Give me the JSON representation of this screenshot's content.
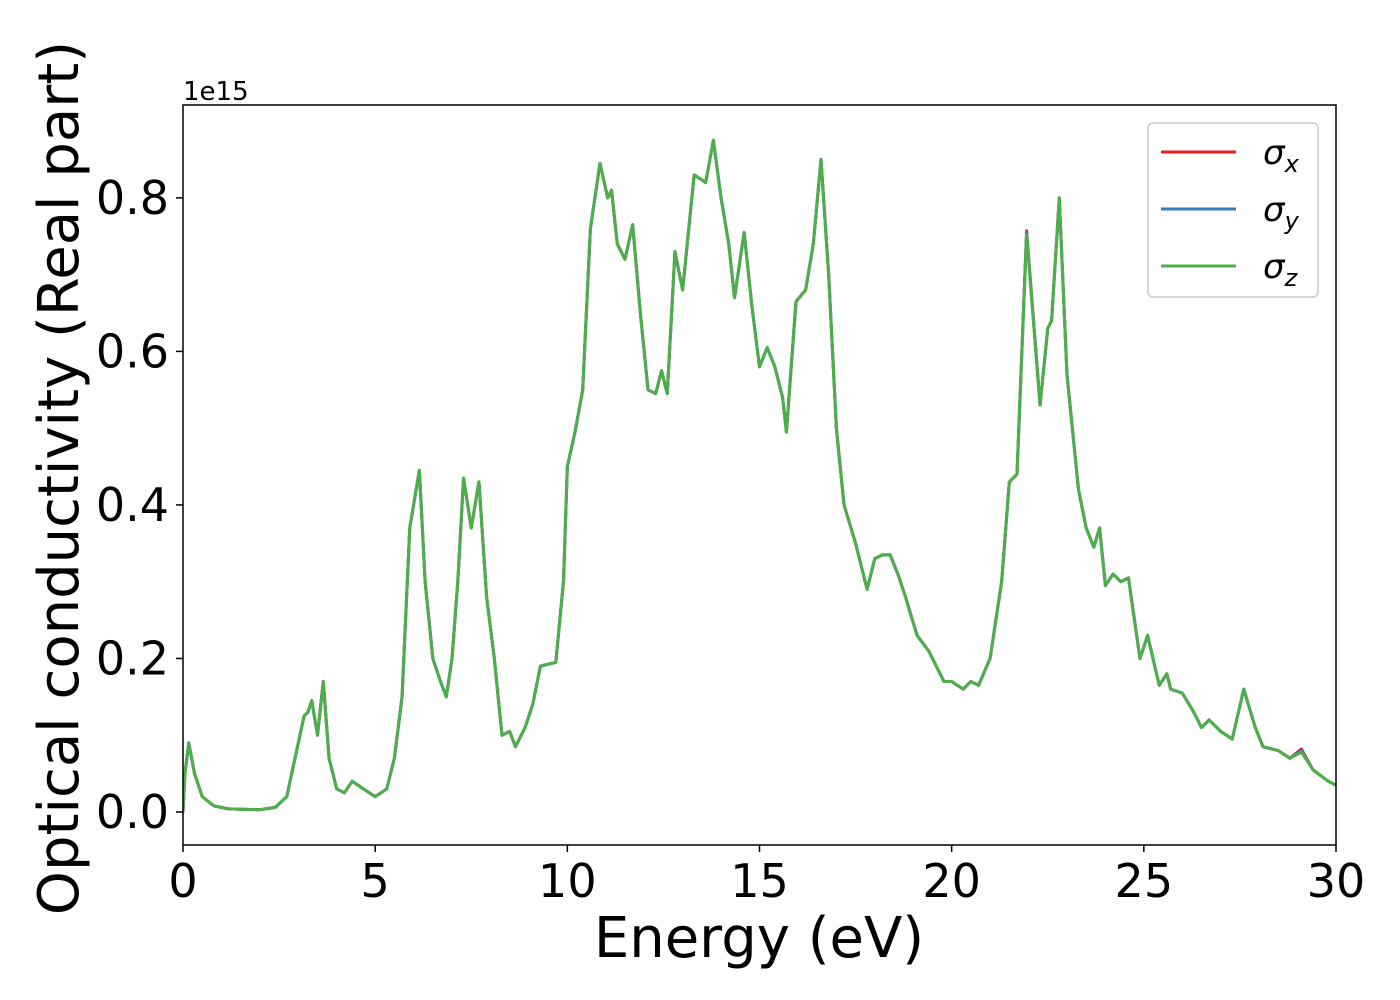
{
  "chart_data": {
    "type": "line",
    "xlabel": "Energy (eV)",
    "ylabel": "Optical conductivity (Real part)",
    "offset_text": "1e15",
    "x": [
      0,
      0.05,
      0.15,
      0.3,
      0.5,
      0.8,
      1.2,
      2.0,
      2.4,
      2.7,
      3.0,
      3.15,
      3.25,
      3.35,
      3.5,
      3.65,
      3.8,
      4.0,
      4.2,
      4.4,
      4.7,
      5.0,
      5.3,
      5.5,
      5.7,
      5.9,
      6.0,
      6.15,
      6.3,
      6.5,
      6.7,
      6.85,
      7.0,
      7.15,
      7.3,
      7.5,
      7.7,
      7.9,
      8.1,
      8.3,
      8.5,
      8.65,
      8.9,
      9.1,
      9.3,
      9.7,
      9.9,
      10.0,
      10.2,
      10.4,
      10.6,
      10.85,
      11.05,
      11.15,
      11.3,
      11.5,
      11.7,
      11.9,
      12.1,
      12.3,
      12.45,
      12.6,
      12.8,
      13.0,
      13.3,
      13.6,
      13.8,
      14.0,
      14.2,
      14.35,
      14.6,
      14.8,
      15.0,
      15.2,
      15.4,
      15.6,
      15.7,
      15.95,
      16.2,
      16.4,
      16.6,
      16.8,
      17.0,
      17.2,
      17.5,
      17.8,
      18.0,
      18.2,
      18.4,
      18.6,
      18.8,
      19.1,
      19.4,
      19.8,
      20.0,
      20.3,
      20.5,
      20.7,
      21.0,
      21.3,
      21.5,
      21.7,
      21.95,
      22.3,
      22.5,
      22.6,
      22.8,
      23.0,
      23.3,
      23.5,
      23.7,
      23.85,
      24.0,
      24.2,
      24.4,
      24.6,
      24.9,
      25.1,
      25.4,
      25.6,
      25.7,
      26.0,
      26.3,
      26.5,
      26.7,
      27.0,
      27.3,
      27.6,
      27.9,
      28.1,
      28.5,
      28.8,
      29.1,
      29.4,
      29.8,
      30.0
    ],
    "series": [
      {
        "name": "σx",
        "color": "#e41a1c",
        "values": [
          0,
          0.05,
          0.09,
          0.05,
          0.02,
          0.008,
          0.004,
          0.003,
          0.006,
          0.02,
          0.09,
          0.125,
          0.13,
          0.145,
          0.1,
          0.17,
          0.07,
          0.03,
          0.025,
          0.04,
          0.03,
          0.02,
          0.03,
          0.07,
          0.15,
          0.37,
          0.4,
          0.445,
          0.3,
          0.2,
          0.17,
          0.15,
          0.2,
          0.3,
          0.435,
          0.37,
          0.43,
          0.28,
          0.2,
          0.1,
          0.105,
          0.085,
          0.11,
          0.14,
          0.19,
          0.195,
          0.3,
          0.45,
          0.495,
          0.55,
          0.76,
          0.845,
          0.8,
          0.81,
          0.74,
          0.72,
          0.765,
          0.65,
          0.55,
          0.545,
          0.575,
          0.545,
          0.73,
          0.68,
          0.83,
          0.82,
          0.875,
          0.8,
          0.74,
          0.67,
          0.755,
          0.66,
          0.58,
          0.605,
          0.58,
          0.54,
          0.495,
          0.665,
          0.68,
          0.74,
          0.85,
          0.7,
          0.5,
          0.4,
          0.35,
          0.29,
          0.33,
          0.335,
          0.335,
          0.31,
          0.28,
          0.23,
          0.21,
          0.17,
          0.17,
          0.16,
          0.17,
          0.165,
          0.2,
          0.3,
          0.43,
          0.44,
          0.757,
          0.53,
          0.63,
          0.64,
          0.8,
          0.57,
          0.42,
          0.37,
          0.345,
          0.37,
          0.295,
          0.31,
          0.3,
          0.305,
          0.2,
          0.23,
          0.165,
          0.18,
          0.16,
          0.155,
          0.13,
          0.11,
          0.12,
          0.105,
          0.095,
          0.16,
          0.11,
          0.085,
          0.08,
          0.07,
          0.082,
          0.055,
          0.04,
          0.035
        ]
      },
      {
        "name": "σy",
        "color": "#377eb8",
        "values": [
          0,
          0.05,
          0.09,
          0.05,
          0.02,
          0.008,
          0.004,
          0.003,
          0.006,
          0.02,
          0.09,
          0.125,
          0.13,
          0.145,
          0.1,
          0.17,
          0.07,
          0.03,
          0.025,
          0.04,
          0.03,
          0.02,
          0.03,
          0.07,
          0.15,
          0.37,
          0.4,
          0.445,
          0.3,
          0.2,
          0.17,
          0.15,
          0.2,
          0.3,
          0.435,
          0.37,
          0.43,
          0.28,
          0.2,
          0.1,
          0.105,
          0.085,
          0.11,
          0.14,
          0.19,
          0.195,
          0.3,
          0.45,
          0.495,
          0.55,
          0.76,
          0.845,
          0.8,
          0.81,
          0.74,
          0.72,
          0.765,
          0.65,
          0.55,
          0.545,
          0.575,
          0.545,
          0.73,
          0.68,
          0.83,
          0.82,
          0.875,
          0.8,
          0.74,
          0.67,
          0.755,
          0.66,
          0.58,
          0.605,
          0.58,
          0.54,
          0.495,
          0.665,
          0.68,
          0.74,
          0.85,
          0.7,
          0.5,
          0.4,
          0.35,
          0.29,
          0.33,
          0.335,
          0.335,
          0.31,
          0.28,
          0.23,
          0.21,
          0.17,
          0.17,
          0.16,
          0.17,
          0.165,
          0.2,
          0.3,
          0.43,
          0.44,
          0.755,
          0.53,
          0.63,
          0.64,
          0.8,
          0.57,
          0.42,
          0.37,
          0.345,
          0.37,
          0.295,
          0.31,
          0.3,
          0.305,
          0.2,
          0.23,
          0.165,
          0.18,
          0.16,
          0.155,
          0.13,
          0.11,
          0.12,
          0.105,
          0.095,
          0.16,
          0.11,
          0.085,
          0.08,
          0.07,
          0.08,
          0.055,
          0.04,
          0.035
        ]
      },
      {
        "name": "σz",
        "color": "#4daf4a",
        "values": [
          0,
          0.05,
          0.09,
          0.05,
          0.02,
          0.008,
          0.004,
          0.003,
          0.006,
          0.02,
          0.09,
          0.125,
          0.13,
          0.145,
          0.1,
          0.17,
          0.07,
          0.03,
          0.025,
          0.04,
          0.03,
          0.02,
          0.03,
          0.07,
          0.15,
          0.37,
          0.4,
          0.445,
          0.3,
          0.2,
          0.17,
          0.15,
          0.2,
          0.3,
          0.435,
          0.37,
          0.43,
          0.28,
          0.2,
          0.1,
          0.105,
          0.085,
          0.11,
          0.14,
          0.19,
          0.195,
          0.3,
          0.45,
          0.495,
          0.55,
          0.76,
          0.845,
          0.8,
          0.81,
          0.74,
          0.72,
          0.765,
          0.65,
          0.55,
          0.545,
          0.575,
          0.545,
          0.73,
          0.68,
          0.83,
          0.82,
          0.875,
          0.8,
          0.74,
          0.67,
          0.755,
          0.66,
          0.58,
          0.605,
          0.58,
          0.54,
          0.495,
          0.665,
          0.68,
          0.74,
          0.85,
          0.7,
          0.5,
          0.4,
          0.35,
          0.29,
          0.33,
          0.335,
          0.335,
          0.31,
          0.28,
          0.23,
          0.21,
          0.17,
          0.17,
          0.16,
          0.17,
          0.165,
          0.2,
          0.3,
          0.43,
          0.44,
          0.752,
          0.53,
          0.63,
          0.64,
          0.8,
          0.57,
          0.42,
          0.37,
          0.345,
          0.37,
          0.295,
          0.31,
          0.3,
          0.305,
          0.2,
          0.23,
          0.165,
          0.18,
          0.16,
          0.155,
          0.13,
          0.11,
          0.12,
          0.105,
          0.095,
          0.16,
          0.11,
          0.085,
          0.08,
          0.07,
          0.078,
          0.055,
          0.04,
          0.035
        ]
      }
    ],
    "xlim": [
      0,
      30
    ],
    "xticks": [
      0,
      5,
      10,
      15,
      20,
      25,
      30
    ],
    "ylim": [
      -0.043,
      0.921
    ],
    "yticks": [
      {
        "value": 0,
        "label": "0.0"
      },
      0.2,
      0.4,
      0.6,
      0.8
    ],
    "grid": false,
    "legend": "upper right"
  }
}
